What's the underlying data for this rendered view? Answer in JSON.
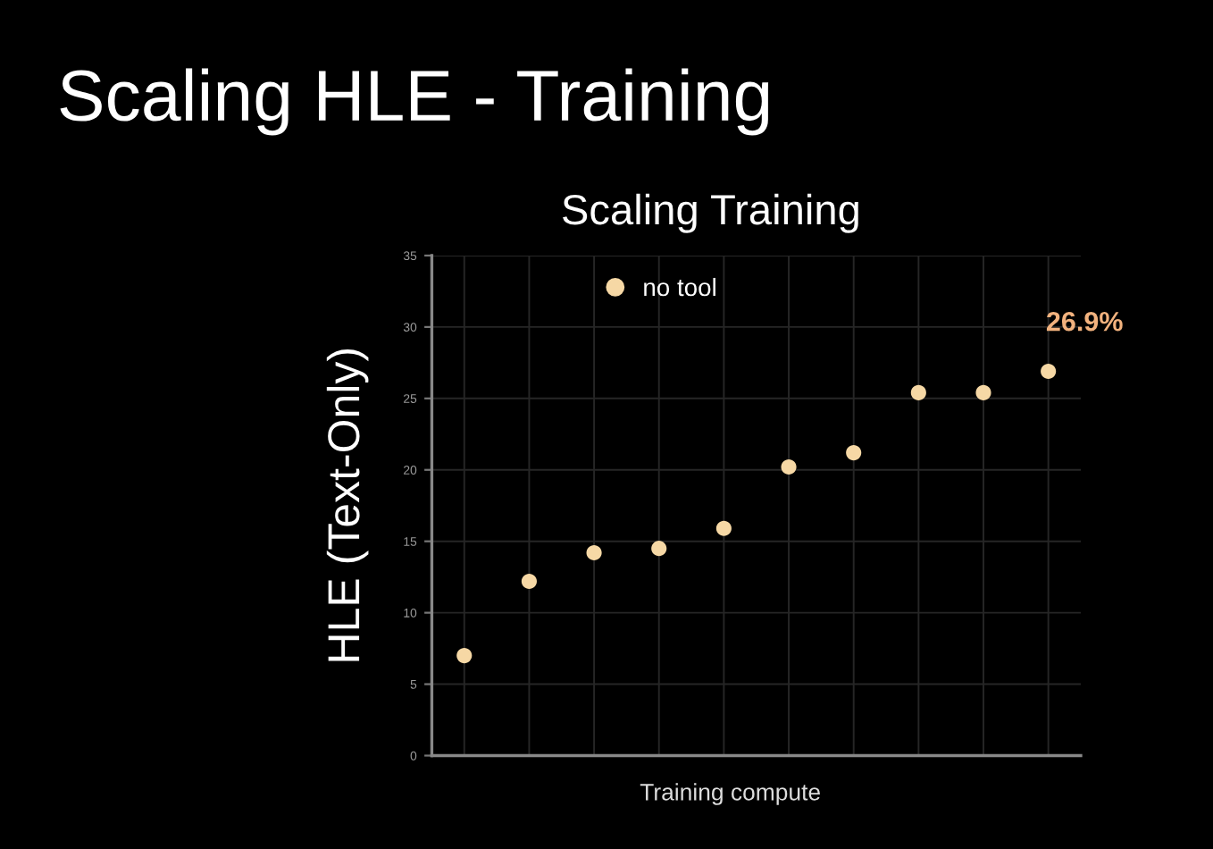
{
  "chart_data": {
    "type": "scatter",
    "title": "Scaling HLE - Training",
    "subtitle": "Scaling Training",
    "xlabel": "Training compute",
    "ylabel": "HLE (Text-Only)",
    "categories": [
      null,
      null,
      null,
      null,
      null,
      null,
      null,
      null,
      null,
      null
    ],
    "series": [
      {
        "name": "no tool",
        "color": "#f6d8a5",
        "values": [
          7.0,
          12.2,
          14.2,
          14.5,
          15.9,
          20.2,
          21.2,
          25.4,
          25.4,
          26.9
        ],
        "value_labels": [
          null,
          null,
          null,
          null,
          null,
          null,
          null,
          null,
          null,
          "26.9%"
        ]
      }
    ],
    "ylim": [
      0,
      35
    ],
    "yticks": [
      0,
      5,
      10,
      15,
      20,
      25,
      30,
      35
    ],
    "grid": true,
    "legend": "top left",
    "marker": "circle"
  }
}
